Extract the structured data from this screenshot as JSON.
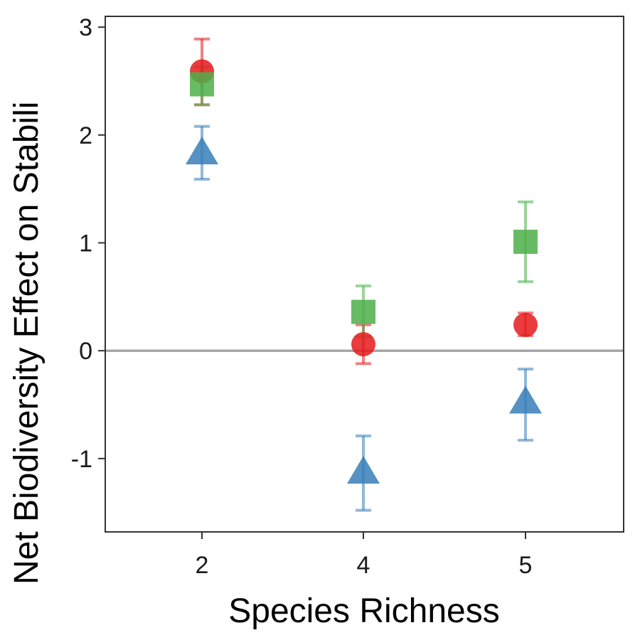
{
  "chart_data": {
    "type": "scatter",
    "title": "",
    "xlabel": "Species Richness",
    "ylabel": "Net Biodiversity Effect on Stabili",
    "categories": [
      "2",
      "4",
      "5"
    ],
    "ylim": [
      -1.68,
      3.1
    ],
    "yticks": [
      3,
      2,
      1,
      0,
      -1
    ],
    "ytick_labels": [
      "3",
      "2",
      "1",
      "0",
      "-1"
    ],
    "reference_line_y": 0,
    "grid": false,
    "legend": "none",
    "series": [
      {
        "color": "#E41A1C",
        "marker": "circle",
        "points": [
          {
            "x": "2",
            "y": 2.59,
            "lo": 2.28,
            "hi": 2.89
          },
          {
            "x": "4",
            "y": 0.06,
            "lo": -0.12,
            "hi": 0.24
          },
          {
            "x": "5",
            "y": 0.24,
            "lo": 0.14,
            "hi": 0.35
          }
        ]
      },
      {
        "color": "#4DAF4A",
        "marker": "square",
        "points": [
          {
            "x": "2",
            "y": 2.47,
            "lo": 2.28,
            "hi": 2.63
          },
          {
            "x": "4",
            "y": 0.36,
            "lo": 0.13,
            "hi": 0.6
          },
          {
            "x": "5",
            "y": 1.01,
            "lo": 0.64,
            "hi": 1.38
          }
        ]
      },
      {
        "color": "#377EB8",
        "marker": "triangle",
        "points": [
          {
            "x": "2",
            "y": 1.84,
            "lo": 1.59,
            "hi": 2.08
          },
          {
            "x": "4",
            "y": -1.12,
            "lo": -1.48,
            "hi": -0.79
          },
          {
            "x": "5",
            "y": -0.47,
            "lo": -0.83,
            "hi": -0.17
          }
        ]
      }
    ]
  }
}
